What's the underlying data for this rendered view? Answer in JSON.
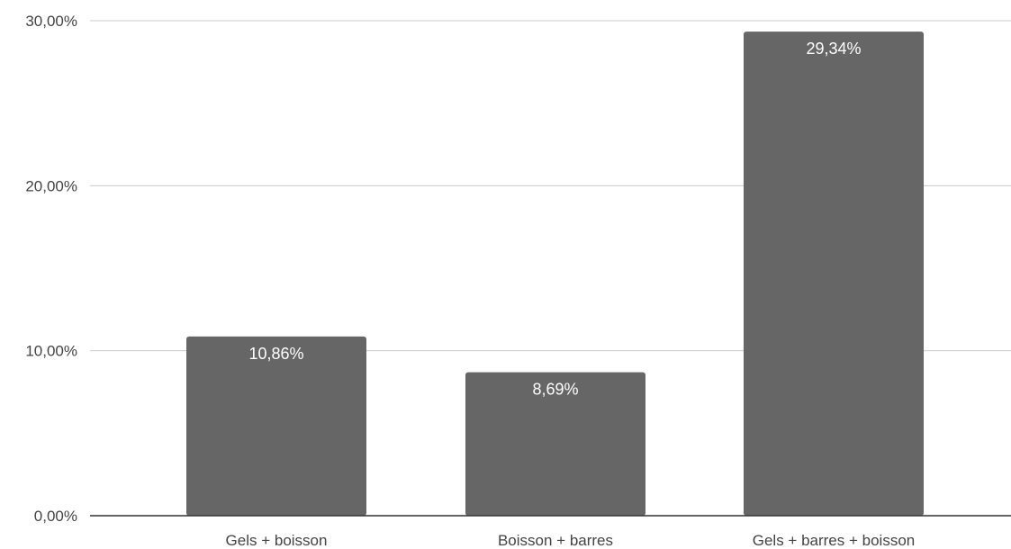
{
  "chart_data": {
    "type": "bar",
    "title": "",
    "xlabel": "",
    "ylabel": "",
    "categories": [
      "Gels + boisson",
      "Boisson + barres",
      "Gels + barres + boisson"
    ],
    "values": [
      10.86,
      8.69,
      29.34
    ],
    "value_labels": [
      "10,86%",
      "8,69%",
      "29,34%"
    ],
    "ylim": [
      0,
      30
    ],
    "yticks": [
      0,
      10,
      20,
      30
    ],
    "ytick_labels": [
      "0,00%",
      "10,00%",
      "20,00%",
      "30,00%"
    ],
    "grid": true,
    "legend": "none",
    "colors": {
      "bar": "#666666",
      "grid": "#cccccc",
      "axis": "#333333",
      "tick_text": "#444444",
      "data_label": "#ffffff"
    }
  }
}
